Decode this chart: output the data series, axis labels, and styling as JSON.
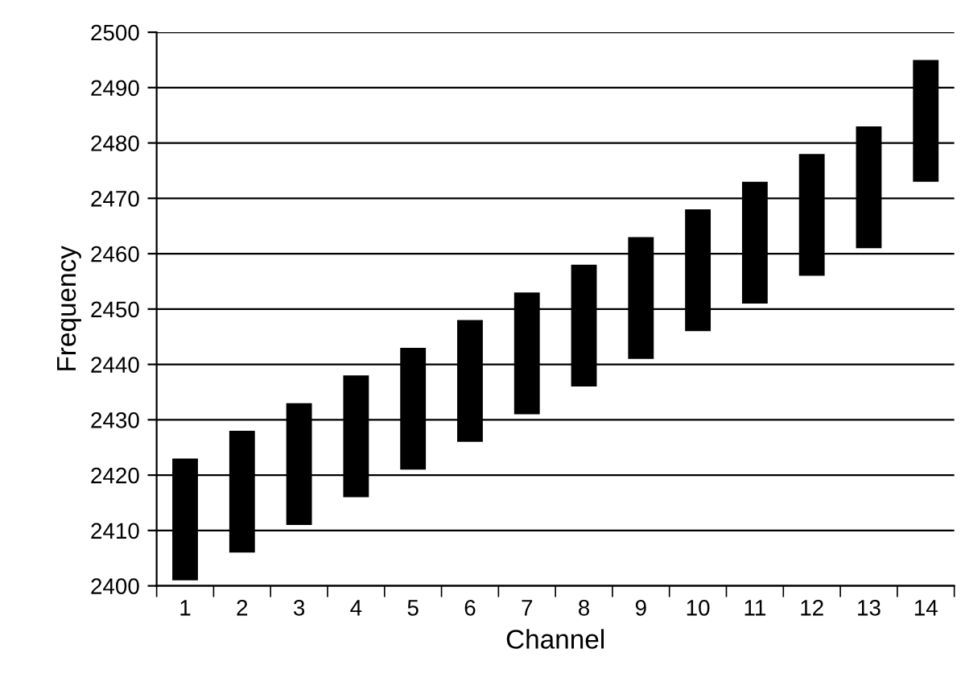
{
  "chart_data": {
    "type": "bar",
    "xlabel": "Channel",
    "ylabel": "Frequency",
    "categories": [
      "1",
      "2",
      "3",
      "4",
      "5",
      "6",
      "7",
      "8",
      "9",
      "10",
      "11",
      "12",
      "13",
      "14"
    ],
    "base": [
      2401,
      2406,
      2411,
      2416,
      2421,
      2426,
      2431,
      2436,
      2441,
      2446,
      2451,
      2456,
      2461,
      2473
    ],
    "values": [
      22,
      22,
      22,
      22,
      22,
      22,
      22,
      22,
      22,
      22,
      22,
      22,
      22,
      22
    ],
    "color": "#000000",
    "ylim": [
      2400,
      2500
    ],
    "yticks": [
      2400,
      2410,
      2420,
      2430,
      2440,
      2450,
      2460,
      2470,
      2480,
      2490,
      2500
    ],
    "grid": "y",
    "legend": false
  }
}
